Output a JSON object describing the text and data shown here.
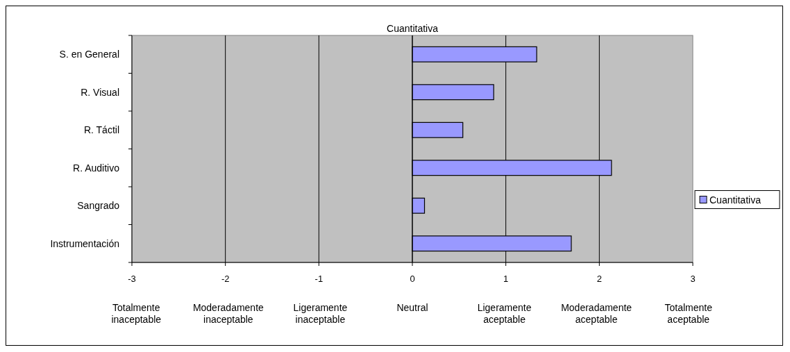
{
  "chart_data": {
    "type": "bar",
    "orientation": "horizontal",
    "title": "Cuantitativa",
    "categories": [
      "S. en General",
      "R. Visual",
      "R. Táctil",
      "R. Auditivo",
      "Sangrado",
      "Instrumentación"
    ],
    "series": [
      {
        "name": "Cuantitativa",
        "color": "#9999ff",
        "values": [
          1.33,
          0.87,
          0.54,
          2.13,
          0.13,
          1.7
        ]
      }
    ],
    "xlim": [
      -3,
      3
    ],
    "xticks": [
      -3,
      -2,
      -1,
      0,
      1,
      2,
      3
    ],
    "grid": "x",
    "legend": "right",
    "annotations": [
      "Totalmente inaceptable",
      "Moderadamente inaceptable",
      "Ligeramente inaceptable",
      "Neutral",
      "Ligeramente aceptable",
      "Moderadamente aceptable",
      "Totalmente aceptable"
    ]
  }
}
